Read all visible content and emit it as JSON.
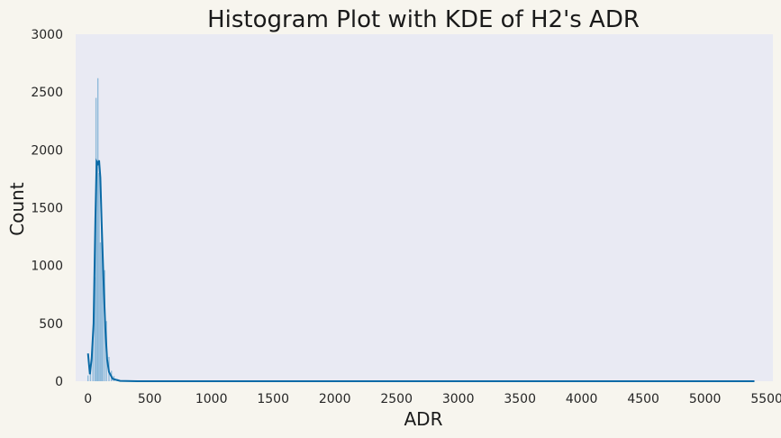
{
  "chart_data": {
    "type": "bar",
    "subtype": "histogram-with-kde",
    "title": "Histogram Plot with KDE of H2's ADR",
    "xlabel": "ADR",
    "ylabel": "Count",
    "xlim": [
      -100,
      5550
    ],
    "ylim": [
      0,
      3000
    ],
    "x_ticks": [
      "0",
      "500",
      "1000",
      "1500",
      "2000",
      "2500",
      "3000",
      "3500",
      "4000",
      "4500",
      "5000",
      "5500"
    ],
    "y_ticks": [
      "0",
      "500",
      "1000",
      "1500",
      "2000",
      "2500",
      "3000"
    ],
    "grid": false,
    "legend": false,
    "colors": {
      "page_background": "#f7f5ee",
      "plot_background": "#e9eaf3",
      "bars": "#7fb2d5",
      "kde_line": "#0a6aa6"
    },
    "histogram_bins": [
      {
        "x": 0,
        "count": 50
      },
      {
        "x": 20,
        "count": 110
      },
      {
        "x": 40,
        "count": 380
      },
      {
        "x": 55,
        "count": 900
      },
      {
        "x": 65,
        "count": 2450
      },
      {
        "x": 75,
        "count": 1900
      },
      {
        "x": 80,
        "count": 2620
      },
      {
        "x": 90,
        "count": 1800
      },
      {
        "x": 100,
        "count": 1200
      },
      {
        "x": 110,
        "count": 1350
      },
      {
        "x": 120,
        "count": 1100
      },
      {
        "x": 135,
        "count": 960
      },
      {
        "x": 150,
        "count": 520
      },
      {
        "x": 170,
        "count": 210
      },
      {
        "x": 190,
        "count": 90
      },
      {
        "x": 210,
        "count": 45
      },
      {
        "x": 240,
        "count": 18
      },
      {
        "x": 280,
        "count": 6
      },
      {
        "x": 5400,
        "count": 1
      }
    ],
    "kde_line": [
      {
        "x": 0,
        "y": 240
      },
      {
        "x": 15,
        "y": 60
      },
      {
        "x": 30,
        "y": 200
      },
      {
        "x": 45,
        "y": 500
      },
      {
        "x": 60,
        "y": 1400
      },
      {
        "x": 70,
        "y": 1900
      },
      {
        "x": 80,
        "y": 1880
      },
      {
        "x": 90,
        "y": 1910
      },
      {
        "x": 100,
        "y": 1760
      },
      {
        "x": 110,
        "y": 1380
      },
      {
        "x": 125,
        "y": 900
      },
      {
        "x": 140,
        "y": 460
      },
      {
        "x": 155,
        "y": 190
      },
      {
        "x": 170,
        "y": 80
      },
      {
        "x": 200,
        "y": 20
      },
      {
        "x": 260,
        "y": 3
      },
      {
        "x": 400,
        "y": 0
      },
      {
        "x": 1000,
        "y": 0
      },
      {
        "x": 5400,
        "y": 0
      }
    ]
  }
}
